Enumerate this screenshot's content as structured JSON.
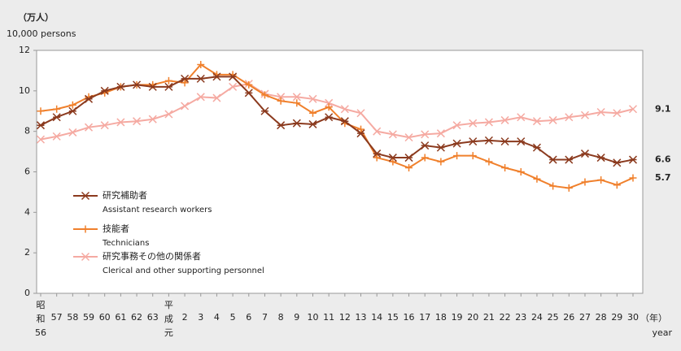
{
  "chart_data": {
    "type": "line",
    "y_unit_label": "（万人）",
    "y_unit_label_en": "10,000 persons",
    "x_unit_label": "（年）",
    "x_unit_label_en": "year",
    "categories": [
      "昭和56",
      "57",
      "58",
      "59",
      "60",
      "61",
      "62",
      "63",
      "平成元",
      "2",
      "3",
      "4",
      "5",
      "6",
      "7",
      "8",
      "9",
      "10",
      "11",
      "12",
      "13",
      "14",
      "15",
      "16",
      "17",
      "18",
      "19",
      "20",
      "21",
      "22",
      "23",
      "24",
      "25",
      "26",
      "27",
      "28",
      "29",
      "30"
    ],
    "series": [
      {
        "name": "研究補助者",
        "name_en": "Assistant research workers",
        "color": "#8b3a1e",
        "marker": "asterisk",
        "values": [
          8.3,
          8.7,
          9.0,
          9.6,
          10.0,
          10.2,
          10.3,
          10.2,
          10.2,
          10.6,
          10.6,
          10.7,
          10.7,
          9.9,
          9.0,
          8.3,
          8.4,
          8.35,
          8.7,
          8.5,
          7.9,
          6.9,
          6.7,
          6.7,
          7.3,
          7.2,
          7.4,
          7.5,
          7.55,
          7.5,
          7.5,
          7.2,
          6.6,
          6.6,
          6.9,
          6.7,
          6.45,
          6.6
        ]
      },
      {
        "name": "技能者",
        "name_en": "Technicians",
        "color": "#f0802c",
        "marker": "plus",
        "values": [
          9.0,
          9.1,
          9.3,
          9.7,
          9.9,
          10.2,
          10.3,
          10.3,
          10.5,
          10.4,
          11.3,
          10.8,
          10.8,
          10.3,
          9.8,
          9.5,
          9.4,
          8.9,
          9.2,
          8.4,
          8.1,
          6.7,
          6.5,
          6.2,
          6.7,
          6.5,
          6.8,
          6.8,
          6.5,
          6.2,
          6.0,
          5.65,
          5.3,
          5.2,
          5.5,
          5.6,
          5.35,
          5.7
        ]
      },
      {
        "name": "研究事務その他の関係者",
        "name_en": "Clerical and other supporting personnel",
        "color": "#f5aaa2",
        "marker": "cross",
        "values": [
          7.6,
          7.75,
          7.95,
          8.2,
          8.3,
          8.45,
          8.5,
          8.6,
          8.85,
          9.25,
          9.7,
          9.65,
          10.2,
          10.35,
          9.85,
          9.7,
          9.7,
          9.6,
          9.4,
          9.1,
          8.9,
          8.0,
          7.85,
          7.7,
          7.85,
          7.9,
          8.3,
          8.4,
          8.45,
          8.55,
          8.7,
          8.5,
          8.55,
          8.7,
          8.8,
          8.95,
          8.9,
          9.1
        ]
      }
    ],
    "end_labels": true,
    "ylim": [
      0,
      12
    ],
    "yticks": [
      0,
      2,
      4,
      6,
      8,
      10,
      12
    ],
    "grid": false
  }
}
